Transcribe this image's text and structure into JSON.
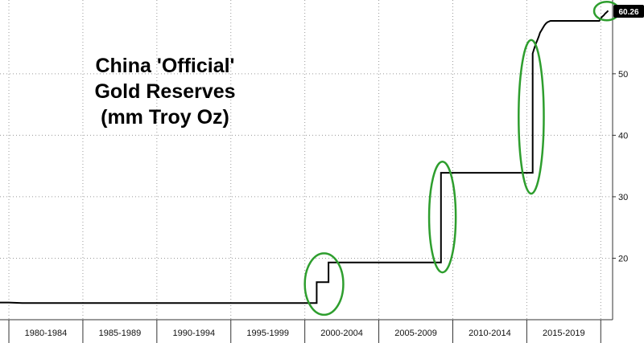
{
  "chart_data": {
    "type": "line",
    "title_lines": [
      "China 'Official'",
      "Gold Reserves",
      "(mm Troy Oz)"
    ],
    "xlabel": "",
    "ylabel": "",
    "x_categories": [
      "1980-1984",
      "1985-1989",
      "1990-1994",
      "1995-1999",
      "2000-2004",
      "2005-2009",
      "2010-2014",
      "2015-2019"
    ],
    "xlim": [
      1979.4,
      2020.8
    ],
    "ylim": [
      10,
      62
    ],
    "y_ticks": [
      20,
      30,
      40,
      50
    ],
    "grid": true,
    "last_value_label": "60.26",
    "colors": {
      "line": "#000000",
      "highlight": "#2e9e2e",
      "grid": "#9a9a9a",
      "label_bg": "#000000"
    },
    "series": [
      {
        "step": true,
        "points": [
          [
            1979.4,
            12.8
          ],
          [
            1980.0,
            12.8
          ],
          [
            1980.9,
            12.7
          ],
          [
            2000.8,
            12.7
          ],
          [
            2000.8,
            16.1
          ],
          [
            2001.6,
            16.1
          ],
          [
            2001.6,
            19.3
          ],
          [
            2009.2,
            19.3
          ],
          [
            2009.2,
            33.9
          ],
          [
            2015.4,
            33.9
          ],
          [
            2015.4,
            53.3
          ],
          [
            2015.5,
            54.1
          ],
          [
            2015.6,
            54.8
          ],
          [
            2015.7,
            55.4
          ],
          [
            2015.8,
            56.0
          ],
          [
            2015.9,
            56.7
          ],
          [
            2016.0,
            57.1
          ],
          [
            2016.1,
            57.5
          ],
          [
            2016.2,
            57.9
          ],
          [
            2016.3,
            58.2
          ],
          [
            2016.4,
            58.4
          ],
          [
            2016.6,
            58.6
          ],
          [
            2016.8,
            58.6
          ],
          [
            2019.9,
            58.6
          ],
          [
            2020.0,
            59.0
          ],
          [
            2020.1,
            59.3
          ],
          [
            2020.2,
            59.5
          ],
          [
            2020.3,
            59.8
          ],
          [
            2020.4,
            60.0
          ],
          [
            2020.5,
            60.26
          ]
        ]
      }
    ],
    "highlights": [
      {
        "cx": 2001.3,
        "cy": 15.8,
        "rx": 1.3,
        "ry": 5.0
      },
      {
        "cx": 2009.3,
        "cy": 26.7,
        "rx": 0.9,
        "ry": 9.0
      },
      {
        "cx": 2015.3,
        "cy": 43.0,
        "rx": 0.85,
        "ry": 12.5
      },
      {
        "cx": 2020.4,
        "cy": 60.2,
        "rx": 0.85,
        "ry": 1.5
      }
    ]
  }
}
